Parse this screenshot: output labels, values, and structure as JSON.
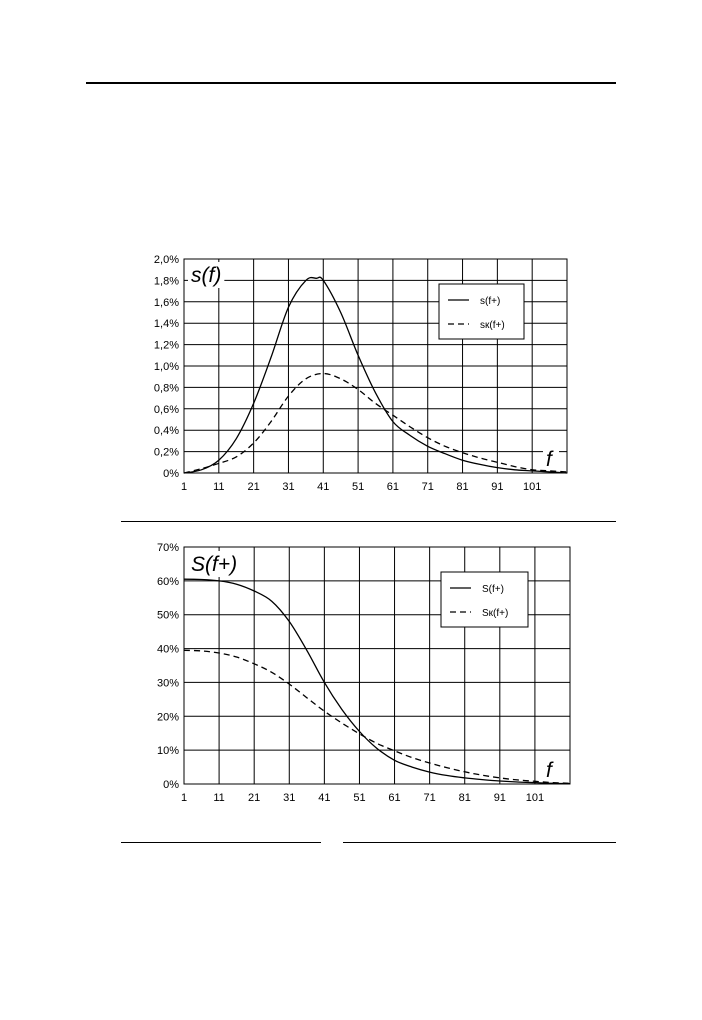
{
  "chart_data": [
    {
      "type": "line",
      "title": "s(f)",
      "xlabel": "f",
      "ylabel": "",
      "xlim": [
        1,
        111
      ],
      "ylim": [
        0,
        2.0
      ],
      "x_ticks": [
        "1",
        "11",
        "21",
        "31",
        "41",
        "51",
        "61",
        "71",
        "81",
        "91",
        "101"
      ],
      "y_ticks": [
        "0%",
        "0,2%",
        "0,4%",
        "0,6%",
        "0,8%",
        "1,0%",
        "1,2%",
        "1,4%",
        "1,6%",
        "1,8%",
        "2,0%"
      ],
      "grid": true,
      "legend": "top-right",
      "series": [
        {
          "name": "s(f+)",
          "style": "solid",
          "x": [
            1,
            6,
            11,
            16,
            21,
            26,
            31,
            36,
            39,
            41,
            46,
            51,
            56,
            61,
            66,
            71,
            76,
            81,
            86,
            91,
            96,
            101,
            106,
            111
          ],
          "values": [
            0.0,
            0.03,
            0.12,
            0.32,
            0.65,
            1.08,
            1.55,
            1.8,
            1.82,
            1.8,
            1.5,
            1.1,
            0.75,
            0.48,
            0.35,
            0.25,
            0.18,
            0.12,
            0.08,
            0.05,
            0.03,
            0.02,
            0.01,
            0.0
          ]
        },
        {
          "name": "sк(f+)",
          "style": "dashed",
          "x": [
            1,
            6,
            11,
            16,
            21,
            26,
            31,
            36,
            41,
            46,
            51,
            56,
            61,
            66,
            71,
            76,
            81,
            86,
            91,
            96,
            101,
            106,
            111
          ],
          "values": [
            0.0,
            0.04,
            0.09,
            0.15,
            0.28,
            0.48,
            0.72,
            0.88,
            0.93,
            0.88,
            0.78,
            0.65,
            0.54,
            0.43,
            0.33,
            0.25,
            0.19,
            0.14,
            0.1,
            0.06,
            0.03,
            0.02,
            0.01
          ]
        }
      ]
    },
    {
      "type": "line",
      "title": "S(f+)",
      "xlabel": "f",
      "ylabel": "",
      "xlim": [
        1,
        111
      ],
      "ylim": [
        0,
        70
      ],
      "x_ticks": [
        "1",
        "11",
        "21",
        "31",
        "41",
        "51",
        "61",
        "71",
        "81",
        "91",
        "101"
      ],
      "y_ticks": [
        "0%",
        "10%",
        "20%",
        "30%",
        "40%",
        "50%",
        "60%",
        "70%"
      ],
      "grid": true,
      "legend": "top-right",
      "series": [
        {
          "name": "S(f+)",
          "style": "solid",
          "x": [
            1,
            6,
            11,
            16,
            21,
            26,
            31,
            36,
            41,
            46,
            51,
            56,
            61,
            66,
            71,
            76,
            81,
            86,
            91,
            96,
            101,
            106,
            111
          ],
          "values": [
            60.5,
            60.4,
            60.0,
            59.0,
            57.0,
            54.0,
            48.0,
            39.5,
            30.0,
            22.0,
            15.5,
            10.5,
            7.0,
            5.0,
            3.5,
            2.5,
            1.8,
            1.3,
            0.9,
            0.6,
            0.4,
            0.2,
            0.1
          ]
        },
        {
          "name": "Sк(f+)",
          "style": "dashed",
          "x": [
            1,
            6,
            11,
            16,
            21,
            26,
            31,
            36,
            41,
            46,
            51,
            56,
            61,
            66,
            71,
            76,
            81,
            86,
            91,
            96,
            101,
            106,
            111
          ],
          "values": [
            39.5,
            39.3,
            38.7,
            37.5,
            35.5,
            33.0,
            29.5,
            25.5,
            21.5,
            18.0,
            14.8,
            12.0,
            9.8,
            7.8,
            6.2,
            4.8,
            3.6,
            2.6,
            1.8,
            1.2,
            0.8,
            0.4,
            0.2
          ]
        }
      ]
    }
  ]
}
